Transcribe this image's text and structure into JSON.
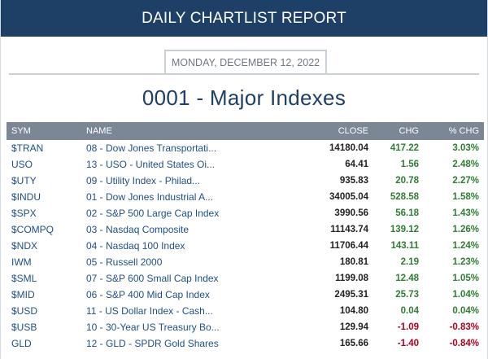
{
  "header": {
    "title": "DAILY CHARTLIST REPORT"
  },
  "date": "MONDAY, DECEMBER 12, 2022",
  "page_title": "0001 - Major Indexes",
  "colors": {
    "header_bg": "#1e3f66",
    "positive": "#2e7d32",
    "negative": "#b00020",
    "link": "#1e4f86"
  },
  "table": {
    "columns": [
      "SYM",
      "NAME",
      "CLOSE",
      "CHG",
      "% CHG"
    ],
    "rows": [
      {
        "sym": "$TRAN",
        "name": "08 - Dow Jones Transportati...",
        "close": "14180.04",
        "chg": "417.22",
        "pct": "3.03%",
        "dir": "pos"
      },
      {
        "sym": "USO",
        "name": "13 - USO - United States Oi...",
        "close": "64.41",
        "chg": "1.56",
        "pct": "2.48%",
        "dir": "pos"
      },
      {
        "sym": "$UTY",
        "name": "09 - Utility Index - Philad...",
        "close": "935.83",
        "chg": "20.78",
        "pct": "2.27%",
        "dir": "pos"
      },
      {
        "sym": "$INDU",
        "name": "01 - Dow Jones Industrial A...",
        "close": "34005.04",
        "chg": "528.58",
        "pct": "1.58%",
        "dir": "pos"
      },
      {
        "sym": "$SPX",
        "name": "02 - S&P 500 Large Cap Index",
        "close": "3990.56",
        "chg": "56.18",
        "pct": "1.43%",
        "dir": "pos"
      },
      {
        "sym": "$COMPQ",
        "name": "03 - Nasdaq Composite",
        "close": "11143.74",
        "chg": "139.12",
        "pct": "1.26%",
        "dir": "pos"
      },
      {
        "sym": "$NDX",
        "name": "04 - Nasdaq 100 Index",
        "close": "11706.44",
        "chg": "143.11",
        "pct": "1.24%",
        "dir": "pos"
      },
      {
        "sym": "IWM",
        "name": "05 - Russell 2000",
        "close": "180.81",
        "chg": "2.19",
        "pct": "1.23%",
        "dir": "pos"
      },
      {
        "sym": "$SML",
        "name": "07 - S&P 600 Small Cap Index",
        "close": "1199.08",
        "chg": "12.48",
        "pct": "1.05%",
        "dir": "pos"
      },
      {
        "sym": "$MID",
        "name": "06 - S&P 400 Mid Cap Index",
        "close": "2495.31",
        "chg": "25.73",
        "pct": "1.04%",
        "dir": "pos"
      },
      {
        "sym": "$USD",
        "name": "11 - US Dollar Index - Cash...",
        "close": "104.80",
        "chg": "0.04",
        "pct": "0.04%",
        "dir": "pos"
      },
      {
        "sym": "$USB",
        "name": "10 - 30-Year US Treasury Bo...",
        "close": "129.94",
        "chg": "-1.09",
        "pct": "-0.83%",
        "dir": "neg"
      },
      {
        "sym": "GLD",
        "name": "12 - GLD - SPDR Gold Shares",
        "close": "165.66",
        "chg": "-1.40",
        "pct": "-0.84%",
        "dir": "neg"
      }
    ]
  }
}
